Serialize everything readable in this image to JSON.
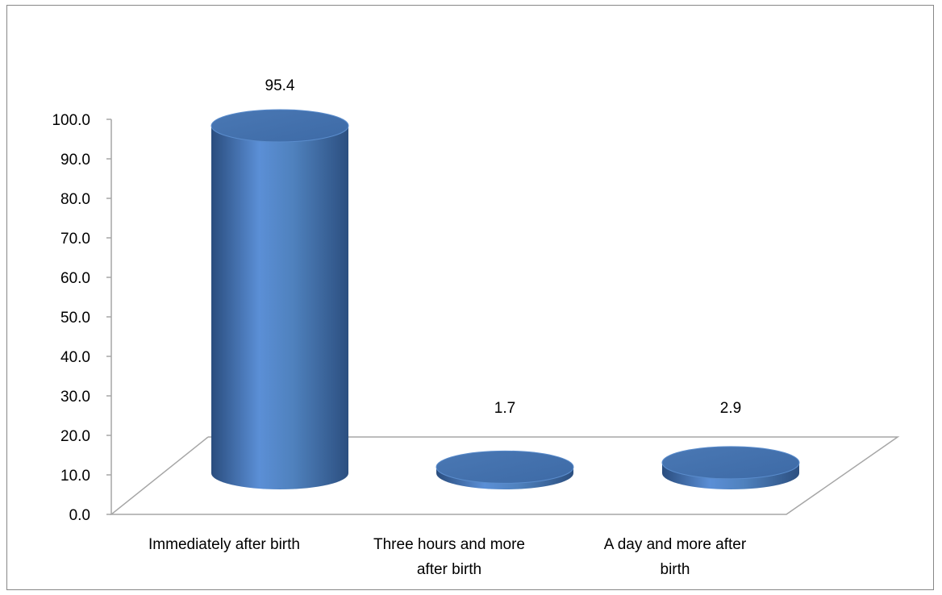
{
  "chart_data": {
    "type": "bar",
    "style": "3d-cylinder",
    "title": "",
    "xlabel": "",
    "ylabel": "",
    "categories": [
      [
        "Immediately after birth"
      ],
      [
        "Three hours and more",
        "after birth"
      ],
      [
        "A day and more after",
        "birth"
      ]
    ],
    "values": [
      95.4,
      1.7,
      2.9
    ],
    "data_labels": [
      "95.4",
      "1.7",
      "2.9"
    ],
    "ylim": [
      0,
      100
    ],
    "yticks": [
      "0.0",
      "10.0",
      "20.0",
      "30.0",
      "40.0",
      "50.0",
      "60.0",
      "70.0",
      "80.0",
      "90.0",
      "100.0"
    ],
    "grid": false,
    "legend": "none",
    "colors": {
      "bar": "#4f81bd",
      "bar_dark": "#2a4d7e",
      "bar_light": "#6d9be0",
      "axis": "#a6a6a6",
      "frame": "#878787"
    }
  }
}
